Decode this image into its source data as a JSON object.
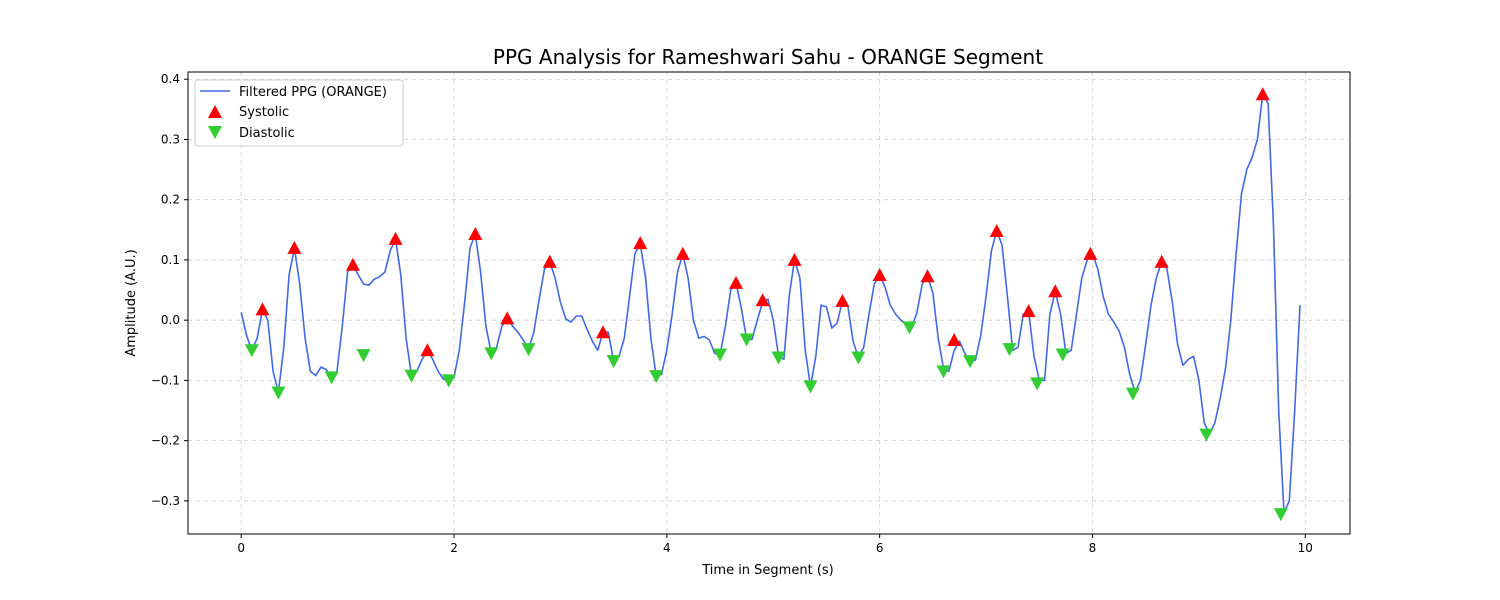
{
  "chart_data": {
    "type": "line",
    "title": "PPG Analysis for Rameshwari Sahu - ORANGE Segment",
    "xlabel": "Time in Segment (s)",
    "ylabel": "Amplitude (A.U.)",
    "xlim": [
      -0.5,
      10.42
    ],
    "ylim": [
      -0.355,
      0.412
    ],
    "x_ticks": [
      0,
      2,
      4,
      6,
      8,
      10
    ],
    "y_ticks": [
      -0.3,
      -0.2,
      -0.1,
      0.0,
      0.1,
      0.2,
      0.3,
      0.4
    ],
    "x_tick_labels": [
      "0",
      "2",
      "4",
      "6",
      "8",
      "10"
    ],
    "y_tick_labels": [
      "−0.3",
      "−0.2",
      "−0.1",
      "0.0",
      "0.1",
      "0.2",
      "0.3",
      "0.4"
    ],
    "grid": true,
    "legend_position": "top-left",
    "series": [
      {
        "name": "Filtered PPG (ORANGE)",
        "kind": "line",
        "color": "#4169e1",
        "points": [
          [
            0,
            0.013
          ],
          [
            0.05,
            -0.025
          ],
          [
            0.1,
            -0.05
          ],
          [
            0.15,
            -0.03
          ],
          [
            0.2,
            0.018
          ],
          [
            0.25,
            0.0
          ],
          [
            0.3,
            -0.085
          ],
          [
            0.35,
            -0.12
          ],
          [
            0.4,
            -0.045
          ],
          [
            0.45,
            0.075
          ],
          [
            0.5,
            0.12
          ],
          [
            0.55,
            0.06
          ],
          [
            0.6,
            -0.03
          ],
          [
            0.65,
            -0.085
          ],
          [
            0.7,
            -0.092
          ],
          [
            0.75,
            -0.078
          ],
          [
            0.8,
            -0.082
          ],
          [
            0.85,
            -0.095
          ],
          [
            0.9,
            -0.085
          ],
          [
            0.95,
            -0.01
          ],
          [
            1.0,
            0.08
          ],
          [
            1.05,
            0.092
          ],
          [
            1.1,
            0.075
          ],
          [
            1.15,
            0.06
          ],
          [
            1.2,
            0.058
          ],
          [
            1.25,
            0.068
          ],
          [
            1.3,
            0.072
          ],
          [
            1.35,
            0.08
          ],
          [
            1.4,
            0.115
          ],
          [
            1.45,
            0.135
          ],
          [
            1.5,
            0.075
          ],
          [
            1.55,
            -0.03
          ],
          [
            1.6,
            -0.092
          ],
          [
            1.65,
            -0.085
          ],
          [
            1.7,
            -0.065
          ],
          [
            1.75,
            -0.05
          ],
          [
            1.8,
            -0.065
          ],
          [
            1.85,
            -0.085
          ],
          [
            1.9,
            -0.098
          ],
          [
            1.95,
            -0.1
          ],
          [
            2.0,
            -0.095
          ],
          [
            2.05,
            -0.05
          ],
          [
            2.1,
            0.03
          ],
          [
            2.15,
            0.12
          ],
          [
            2.2,
            0.143
          ],
          [
            2.25,
            0.08
          ],
          [
            2.3,
            -0.01
          ],
          [
            2.35,
            -0.055
          ],
          [
            2.4,
            -0.045
          ],
          [
            2.45,
            -0.01
          ],
          [
            2.5,
            0.003
          ],
          [
            2.55,
            -0.01
          ],
          [
            2.6,
            -0.02
          ],
          [
            2.65,
            -0.033
          ],
          [
            2.7,
            -0.048
          ],
          [
            2.75,
            -0.02
          ],
          [
            2.8,
            0.035
          ],
          [
            2.85,
            0.085
          ],
          [
            2.9,
            0.097
          ],
          [
            2.95,
            0.07
          ],
          [
            3.0,
            0.03
          ],
          [
            3.05,
            0.002
          ],
          [
            3.1,
            -0.003
          ],
          [
            3.15,
            0.007
          ],
          [
            3.2,
            0.007
          ],
          [
            3.25,
            -0.015
          ],
          [
            3.3,
            -0.035
          ],
          [
            3.35,
            -0.05
          ],
          [
            3.4,
            -0.02
          ],
          [
            3.45,
            -0.02
          ],
          [
            3.5,
            -0.068
          ],
          [
            3.55,
            -0.06
          ],
          [
            3.6,
            -0.03
          ],
          [
            3.65,
            0.04
          ],
          [
            3.7,
            0.11
          ],
          [
            3.75,
            0.128
          ],
          [
            3.8,
            0.07
          ],
          [
            3.85,
            -0.03
          ],
          [
            3.9,
            -0.093
          ],
          [
            3.95,
            -0.09
          ],
          [
            4.0,
            -0.05
          ],
          [
            4.05,
            0.01
          ],
          [
            4.1,
            0.08
          ],
          [
            4.15,
            0.11
          ],
          [
            4.2,
            0.07
          ],
          [
            4.25,
            0.0
          ],
          [
            4.3,
            -0.03
          ],
          [
            4.35,
            -0.027
          ],
          [
            4.4,
            -0.033
          ],
          [
            4.45,
            -0.055
          ],
          [
            4.5,
            -0.057
          ],
          [
            4.55,
            -0.01
          ],
          [
            4.6,
            0.05
          ],
          [
            4.65,
            0.062
          ],
          [
            4.7,
            0.02
          ],
          [
            4.75,
            -0.032
          ],
          [
            4.8,
            -0.032
          ],
          [
            4.85,
            0.0
          ],
          [
            4.9,
            0.03
          ],
          [
            4.95,
            0.035
          ],
          [
            5.0,
            0.0
          ],
          [
            5.05,
            -0.06
          ],
          [
            5.1,
            -0.065
          ],
          [
            5.15,
            0.04
          ],
          [
            5.2,
            0.1
          ],
          [
            5.25,
            0.07
          ],
          [
            5.3,
            -0.05
          ],
          [
            5.35,
            -0.11
          ],
          [
            5.4,
            -0.06
          ],
          [
            5.45,
            0.025
          ],
          [
            5.5,
            0.022
          ],
          [
            5.55,
            -0.013
          ],
          [
            5.6,
            -0.005
          ],
          [
            5.65,
            0.032
          ],
          [
            5.7,
            0.025
          ],
          [
            5.75,
            -0.035
          ],
          [
            5.8,
            -0.062
          ],
          [
            5.85,
            -0.045
          ],
          [
            5.9,
            0.01
          ],
          [
            5.95,
            0.06
          ],
          [
            6.0,
            0.075
          ],
          [
            6.05,
            0.055
          ],
          [
            6.1,
            0.025
          ],
          [
            6.15,
            0.01
          ],
          [
            6.2,
            0.0
          ],
          [
            6.25,
            -0.007
          ],
          [
            6.3,
            -0.012
          ],
          [
            6.35,
            0.012
          ],
          [
            6.4,
            0.06
          ],
          [
            6.45,
            0.073
          ],
          [
            6.5,
            0.045
          ],
          [
            6.55,
            -0.03
          ],
          [
            6.6,
            -0.08
          ],
          [
            6.65,
            -0.085
          ],
          [
            6.7,
            -0.05
          ],
          [
            6.75,
            -0.035
          ],
          [
            6.8,
            -0.055
          ],
          [
            6.85,
            -0.07
          ],
          [
            6.9,
            -0.066
          ],
          [
            6.95,
            -0.025
          ],
          [
            7.0,
            0.04
          ],
          [
            7.05,
            0.115
          ],
          [
            7.1,
            0.148
          ],
          [
            7.15,
            0.125
          ],
          [
            7.2,
            0.04
          ],
          [
            7.25,
            -0.05
          ],
          [
            7.3,
            -0.045
          ],
          [
            7.35,
            0.01
          ],
          [
            7.4,
            0.015
          ],
          [
            7.45,
            -0.06
          ],
          [
            7.5,
            -0.1
          ],
          [
            7.55,
            -0.1
          ],
          [
            7.6,
            0.01
          ],
          [
            7.65,
            0.048
          ],
          [
            7.7,
            0.01
          ],
          [
            7.75,
            -0.055
          ],
          [
            7.8,
            -0.05
          ],
          [
            7.85,
            0.01
          ],
          [
            7.9,
            0.07
          ],
          [
            7.95,
            0.1
          ],
          [
            8.0,
            0.11
          ],
          [
            8.05,
            0.085
          ],
          [
            8.1,
            0.04
          ],
          [
            8.15,
            0.01
          ],
          [
            8.2,
            -0.003
          ],
          [
            8.25,
            -0.018
          ],
          [
            8.3,
            -0.045
          ],
          [
            8.35,
            -0.09
          ],
          [
            8.4,
            -0.12
          ],
          [
            8.45,
            -0.1
          ],
          [
            8.5,
            -0.04
          ],
          [
            8.55,
            0.025
          ],
          [
            8.6,
            0.07
          ],
          [
            8.65,
            0.097
          ],
          [
            8.7,
            0.085
          ],
          [
            8.75,
            0.03
          ],
          [
            8.8,
            -0.04
          ],
          [
            8.85,
            -0.075
          ],
          [
            8.9,
            -0.065
          ],
          [
            8.95,
            -0.06
          ],
          [
            9.0,
            -0.1
          ],
          [
            9.05,
            -0.17
          ],
          [
            9.1,
            -0.19
          ],
          [
            9.15,
            -0.17
          ],
          [
            9.2,
            -0.13
          ],
          [
            9.25,
            -0.08
          ],
          [
            9.3,
            0.0
          ],
          [
            9.35,
            0.11
          ],
          [
            9.4,
            0.21
          ],
          [
            9.45,
            0.25
          ],
          [
            9.5,
            0.27
          ],
          [
            9.55,
            0.3
          ],
          [
            9.6,
            0.375
          ],
          [
            9.65,
            0.36
          ],
          [
            9.7,
            0.16
          ],
          [
            9.75,
            -0.15
          ],
          [
            9.8,
            -0.32
          ],
          [
            9.85,
            -0.3
          ],
          [
            9.9,
            -0.15
          ],
          [
            9.95,
            0.025
          ]
        ]
      },
      {
        "name": "Systolic",
        "kind": "marker-up",
        "color": "#ff0000",
        "points": [
          [
            0.2,
            0.018
          ],
          [
            0.5,
            0.12
          ],
          [
            1.05,
            0.092
          ],
          [
            1.45,
            0.135
          ],
          [
            1.75,
            -0.05
          ],
          [
            2.2,
            0.143
          ],
          [
            2.5,
            0.003
          ],
          [
            2.9,
            0.097
          ],
          [
            3.4,
            -0.02
          ],
          [
            3.75,
            0.128
          ],
          [
            4.15,
            0.11
          ],
          [
            4.65,
            0.062
          ],
          [
            4.9,
            0.033
          ],
          [
            5.2,
            0.1
          ],
          [
            5.65,
            0.032
          ],
          [
            6.0,
            0.075
          ],
          [
            6.45,
            0.073
          ],
          [
            6.7,
            -0.033
          ],
          [
            7.1,
            0.148
          ],
          [
            7.4,
            0.015
          ],
          [
            7.65,
            0.048
          ],
          [
            7.98,
            0.11
          ],
          [
            8.65,
            0.097
          ],
          [
            9.6,
            0.375
          ]
        ]
      },
      {
        "name": "Diastolic",
        "kind": "marker-down",
        "color": "#32cd32",
        "points": [
          [
            0.1,
            -0.05
          ],
          [
            0.35,
            -0.12
          ],
          [
            0.85,
            -0.095
          ],
          [
            1.15,
            -0.058
          ],
          [
            1.6,
            -0.092
          ],
          [
            1.95,
            -0.1
          ],
          [
            2.35,
            -0.055
          ],
          [
            2.7,
            -0.048
          ],
          [
            3.5,
            -0.068
          ],
          [
            3.9,
            -0.093
          ],
          [
            4.5,
            -0.057
          ],
          [
            4.75,
            -0.032
          ],
          [
            5.05,
            -0.062
          ],
          [
            5.35,
            -0.11
          ],
          [
            5.8,
            -0.062
          ],
          [
            6.28,
            -0.012
          ],
          [
            6.6,
            -0.085
          ],
          [
            6.85,
            -0.068
          ],
          [
            7.22,
            -0.048
          ],
          [
            7.48,
            -0.105
          ],
          [
            7.72,
            -0.057
          ],
          [
            8.38,
            -0.122
          ],
          [
            9.07,
            -0.19
          ],
          [
            9.77,
            -0.322
          ]
        ]
      }
    ]
  }
}
